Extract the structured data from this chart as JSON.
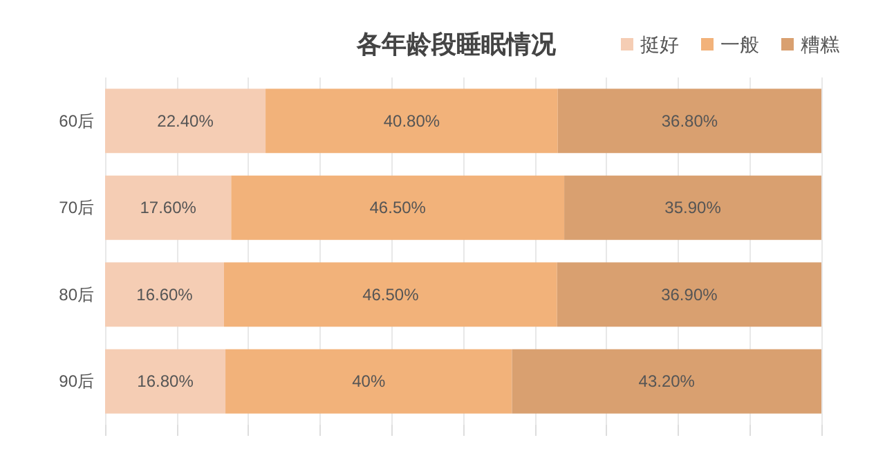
{
  "chart_data": {
    "type": "bar",
    "orientation": "horizontal",
    "stacked": true,
    "title": "各年龄段睡眠情况",
    "categories": [
      "60后",
      "70后",
      "80后",
      "90后"
    ],
    "series": [
      {
        "name": "挺好",
        "color": "#f5cdb4",
        "values": [
          22.4,
          17.6,
          16.6,
          16.8
        ],
        "value_labels": [
          "22.40%",
          "17.60%",
          "16.60%",
          "16.80%"
        ]
      },
      {
        "name": "一般",
        "color": "#f2b27a",
        "values": [
          40.8,
          46.5,
          46.5,
          40
        ],
        "value_labels": [
          "40.80%",
          "46.50%",
          "46.50%",
          "40%"
        ]
      },
      {
        "name": "糟糕",
        "color": "#d9a070",
        "values": [
          36.8,
          35.9,
          36.9,
          43.2
        ],
        "value_labels": [
          "36.80%",
          "35.90%",
          "36.90%",
          "43.20%"
        ]
      }
    ],
    "xlim": [
      0,
      100
    ],
    "xticks": [
      {
        "value": 0,
        "label": null
      },
      {
        "value": 10,
        "label": null
      },
      {
        "value": 20,
        "label": null
      },
      {
        "value": 30,
        "label": null
      },
      {
        "value": 40,
        "label": null
      },
      {
        "value": 50,
        "label": null
      },
      {
        "value": 60,
        "label": null
      },
      {
        "value": 70,
        "label": null
      },
      {
        "value": 80,
        "label": null
      },
      {
        "value": 90,
        "label": null
      },
      {
        "value": 100,
        "label": null
      }
    ],
    "grid": "x",
    "legend": "top right"
  }
}
